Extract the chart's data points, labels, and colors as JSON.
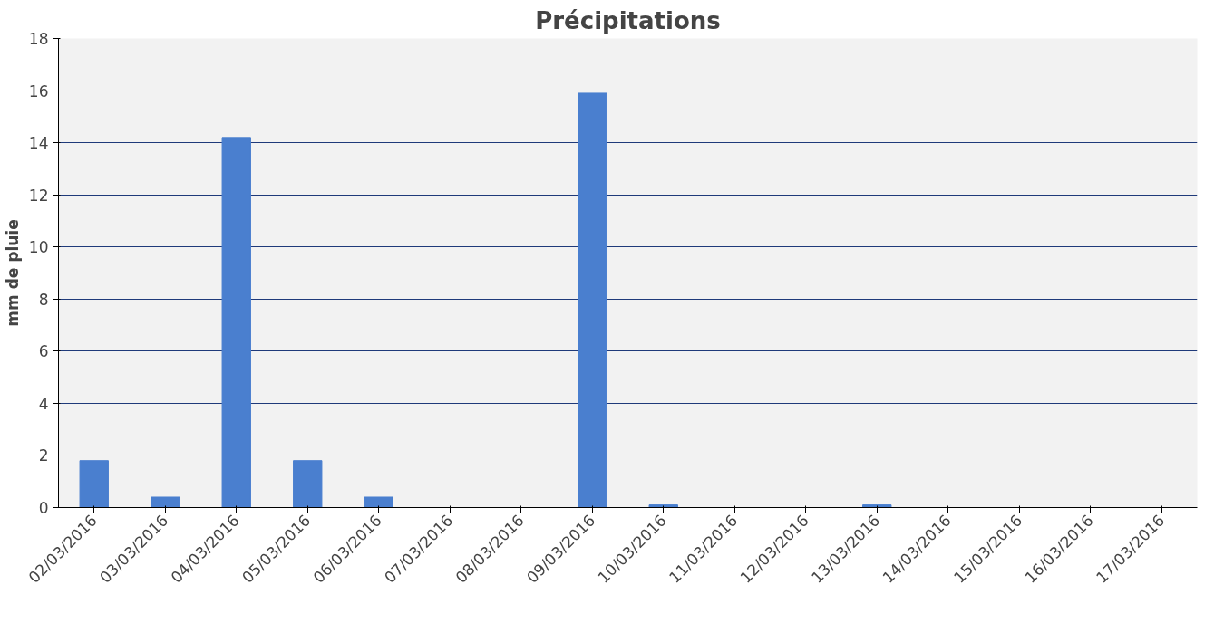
{
  "chart_data": {
    "type": "bar",
    "title": "Précipitations",
    "ylabel": "mm de pluie",
    "categories": [
      "02/03/2016",
      "03/03/2016",
      "04/03/2016",
      "05/03/2016",
      "06/03/2016",
      "07/03/2016",
      "08/03/2016",
      "09/03/2016",
      "10/03/2016",
      "11/03/2016",
      "12/03/2016",
      "13/03/2016",
      "14/03/2016",
      "15/03/2016",
      "16/03/2016",
      "17/03/2016"
    ],
    "values": [
      1.8,
      0.4,
      14.2,
      1.8,
      0.4,
      0,
      0,
      15.9,
      0.1,
      0,
      0,
      0.1,
      0,
      0,
      0,
      0
    ],
    "color": "#4a7fcf",
    "ylim": [
      0,
      18
    ],
    "yticks": [
      0,
      2,
      4,
      6,
      8,
      10,
      12,
      14,
      16,
      18
    ],
    "grid": "y"
  }
}
